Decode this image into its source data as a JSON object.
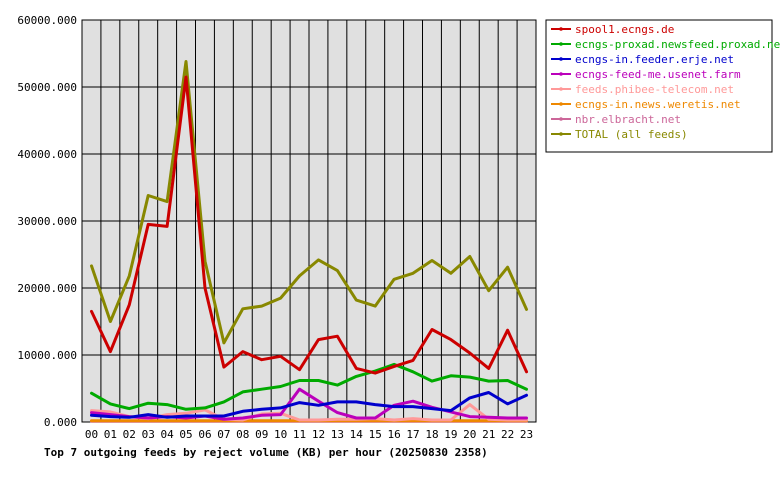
{
  "chart_data": {
    "type": "line",
    "title": "Top 7 outgoing feeds by reject volume (KB) per hour (20250830 2358)",
    "xlabel": "",
    "ylabel": "",
    "categories": [
      "00",
      "01",
      "02",
      "03",
      "04",
      "05",
      "06",
      "07",
      "08",
      "09",
      "10",
      "11",
      "12",
      "13",
      "14",
      "15",
      "16",
      "17",
      "18",
      "19",
      "20",
      "21",
      "22",
      "23"
    ],
    "ylim": [
      0,
      60000
    ],
    "yticks": [
      0,
      10000,
      20000,
      30000,
      40000,
      50000,
      60000
    ],
    "ytick_labels": [
      "0.000",
      "10000.000",
      "20000.000",
      "30000.000",
      "40000.000",
      "50000.000",
      "60000.000"
    ],
    "grid": true,
    "legend_position": "right",
    "series": [
      {
        "name": "spool1.ecngs.de",
        "color": "#cc0000",
        "values": [
          16500,
          10500,
          17500,
          29500,
          29200,
          51500,
          20000,
          8200,
          10500,
          9300,
          9800,
          7800,
          12300,
          12800,
          8000,
          7300,
          8300,
          9200,
          13800,
          12300,
          10300,
          8000,
          13700,
          7500
        ]
      },
      {
        "name": "ecngs-proxad.newsfeed.proxad.net",
        "color": "#00aa00",
        "values": [
          4300,
          2700,
          2000,
          2800,
          2600,
          1900,
          2100,
          3000,
          4500,
          4900,
          5300,
          6200,
          6200,
          5500,
          6800,
          7600,
          8600,
          7500,
          6100,
          6900,
          6700,
          6100,
          6200,
          4900
        ]
      },
      {
        "name": "ecngs-in.feeder.erje.net",
        "color": "#0000cc",
        "values": [
          1000,
          800,
          700,
          1100,
          700,
          900,
          900,
          900,
          1600,
          1900,
          2100,
          2900,
          2500,
          3000,
          3000,
          2600,
          2300,
          2300,
          2000,
          1700,
          3600,
          4400,
          2700,
          4000
        ]
      },
      {
        "name": "ecngs-feed-me.usenet.farm",
        "color": "#bb00bb",
        "values": [
          1400,
          1100,
          800,
          600,
          800,
          600,
          900,
          400,
          600,
          1000,
          1100,
          4900,
          3100,
          1400,
          600,
          600,
          2500,
          3100,
          2200,
          1500,
          800,
          700,
          600,
          600
        ]
      },
      {
        "name": "feeds.phibee-telecom.net",
        "color": "#ff9999",
        "values": [
          1700,
          1500,
          800,
          500,
          1100,
          1300,
          1800,
          400,
          300,
          1200,
          1300,
          300,
          300,
          400,
          400,
          500,
          300,
          500,
          300,
          300,
          2600,
          400,
          300,
          300
        ]
      },
      {
        "name": "ecngs-in.news.weretis.net",
        "color": "#ee8800",
        "values": [
          200,
          200,
          200,
          200,
          200,
          200,
          200,
          200,
          200,
          200,
          200,
          200,
          200,
          200,
          200,
          200,
          200,
          200,
          200,
          200,
          200,
          200,
          200,
          200
        ]
      },
      {
        "name": "nbr.elbracht.net",
        "color": "#cc6699",
        "values": [
          100,
          100,
          100,
          100,
          100,
          100,
          100,
          100,
          100,
          100,
          100,
          100,
          100,
          100,
          100,
          100,
          100,
          100,
          100,
          100,
          100,
          100,
          100,
          100
        ]
      },
      {
        "name": "TOTAL (all feeds)",
        "color": "#888800",
        "values": [
          23300,
          15000,
          21800,
          33800,
          32900,
          53800,
          24000,
          11800,
          16900,
          17300,
          18500,
          21800,
          24200,
          22600,
          18200,
          17300,
          21300,
          22200,
          24100,
          22200,
          24700,
          19600,
          23100,
          16800
        ]
      }
    ]
  }
}
